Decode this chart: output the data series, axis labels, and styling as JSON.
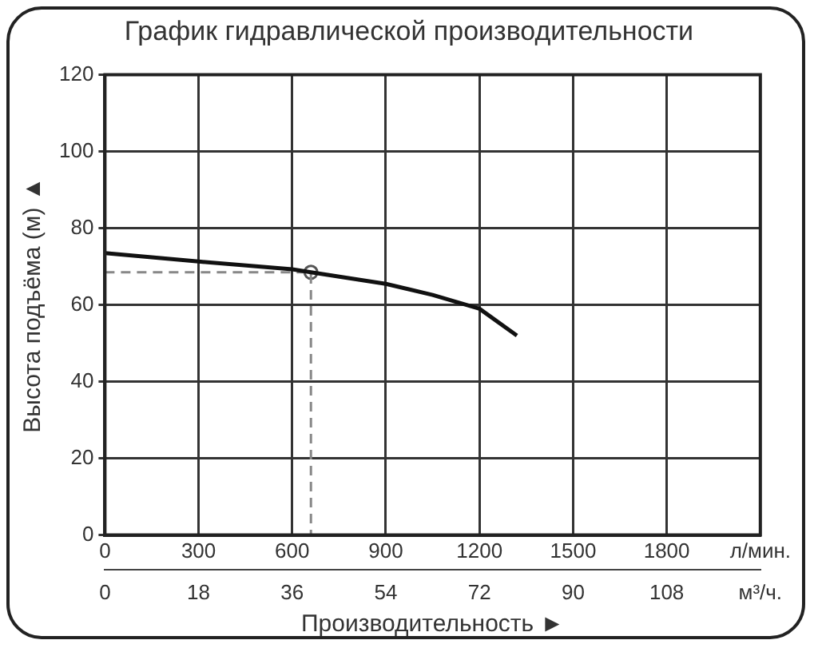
{
  "chart_data": {
    "type": "line",
    "title": "График гидравлической производительности",
    "xlabel": "Производительность ►",
    "ylabel": "Высота подъёма (м) ▲",
    "xlim": [
      0,
      2100
    ],
    "xticks": [
      0,
      300,
      600,
      900,
      1200,
      1500,
      1800,
      {
        "value": 2100,
        "label": "л/мин."
      }
    ],
    "x2lim": [
      0,
      126
    ],
    "x2ticks": [
      0,
      18,
      36,
      54,
      72,
      90,
      108,
      {
        "value": 126,
        "label": "м³/ч."
      }
    ],
    "ylim": [
      0,
      120
    ],
    "yticks": [
      0,
      20,
      40,
      60,
      80,
      100,
      120
    ],
    "grid": true,
    "legend": false,
    "series": [
      {
        "type": "line",
        "color": "#111111",
        "marker": "none",
        "line_style": "solid",
        "x": [
          0,
          300,
          600,
          660,
          900,
          1050,
          1200,
          1320
        ],
        "values": [
          73.5,
          71.3,
          69.3,
          68.5,
          65.5,
          62.6,
          59,
          52
        ]
      },
      {
        "type": "line",
        "color": "#888888",
        "marker": "none",
        "line_style": "dashed",
        "x": [
          0,
          660,
          660
        ],
        "values": [
          68.5,
          68.5,
          0
        ]
      },
      {
        "type": "scatter",
        "color": "#555555",
        "marker": "circle",
        "x": [
          660
        ],
        "values": [
          68.5
        ]
      }
    ]
  }
}
